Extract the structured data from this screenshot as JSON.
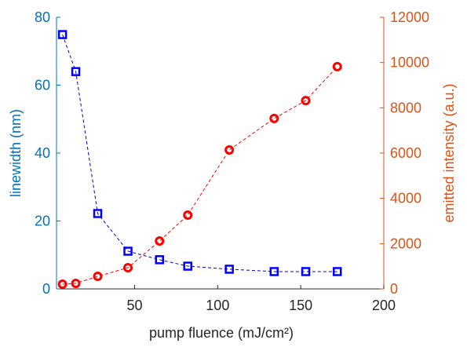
{
  "chart_data": {
    "type": "scatter",
    "x_label": "pump fluence (mJ/cm²)",
    "y_label": "linewidth (nm)",
    "y2_label": "emitted intensity (a.u.)",
    "xlim": [
      3,
      200
    ],
    "xticks": [
      50,
      100,
      150,
      200
    ],
    "ylim": [
      0,
      80
    ],
    "yticks": [
      0,
      20,
      40,
      60,
      80
    ],
    "y2lim": [
      0,
      12000
    ],
    "y2ticks": [
      0,
      2000,
      4000,
      6000,
      8000,
      10000,
      12000
    ],
    "y_axis_color": "#0072bd",
    "y2_axis_color": "#d95319",
    "series": [
      {
        "name": "linewidth",
        "color": "#0000ff",
        "marker": "square",
        "line_color": "#0000cc",
        "x": [
          6.6,
          14.6,
          27.8,
          46,
          65,
          82,
          107,
          134,
          153,
          172
        ],
        "values": [
          74.9,
          64,
          22.2,
          11.1,
          8.6,
          6.7,
          5.8,
          5.1,
          5.1,
          5.1
        ]
      },
      {
        "name": "emitted intensity",
        "color": "#ff0000",
        "marker": "circle",
        "line_color": "#ff0000",
        "axis": "y2",
        "x": [
          6.6,
          14.6,
          27.8,
          46,
          65,
          82,
          107,
          134,
          153,
          172
        ],
        "values": [
          208,
          243,
          555,
          937,
          2116,
          3260,
          6140,
          7530,
          8320,
          9820
        ]
      }
    ]
  }
}
